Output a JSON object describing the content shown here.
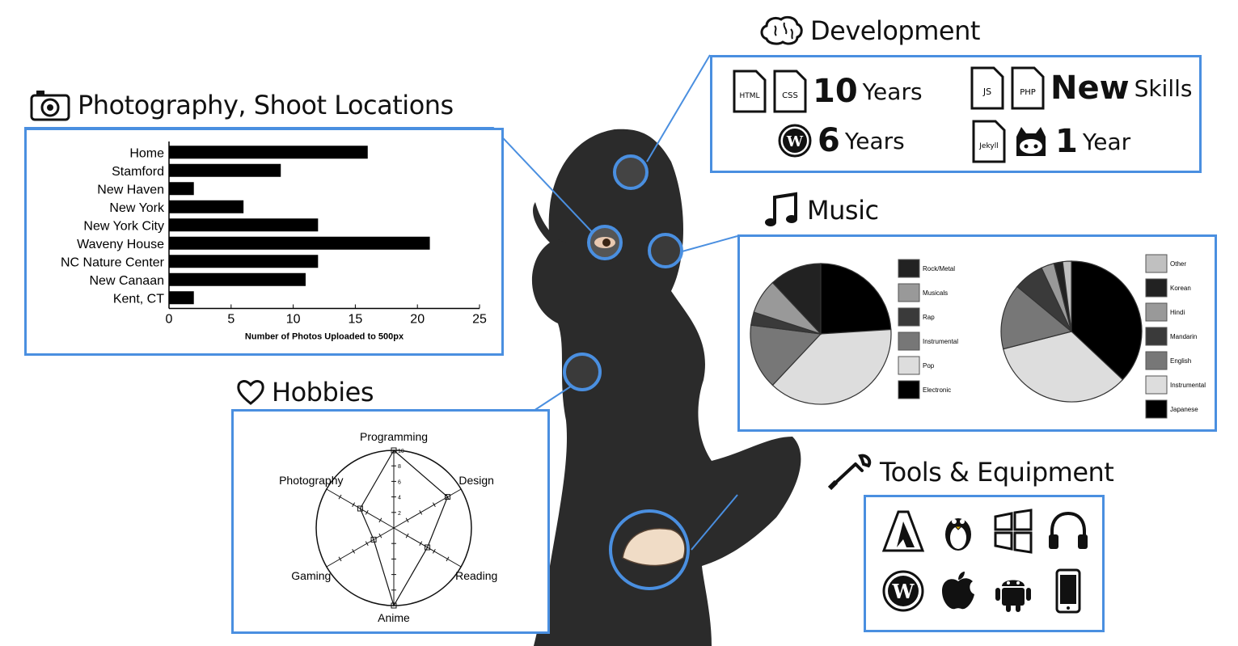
{
  "sections": {
    "photography": "Photography, Shoot Locations",
    "development": "Development",
    "music": "Music",
    "hobbies": "Hobbies",
    "tools": "Tools & Equipment"
  },
  "development": {
    "row1": {
      "icons": [
        "HTML",
        "CSS"
      ],
      "num": "10",
      "unit": "Years"
    },
    "row2": {
      "icons": [
        "wordpress-icon"
      ],
      "num": "6",
      "unit": "Years"
    },
    "row3": {
      "icons": [
        "JS",
        "PHP"
      ],
      "num": "New",
      "unit": "Skills"
    },
    "row4": {
      "icons": [
        "Jekyll",
        "github-icon"
      ],
      "num": "1",
      "unit": "Year"
    }
  },
  "tools": {
    "icons": [
      "adobe-icon",
      "linux-icon",
      "windows-icon",
      "headphones-icon",
      "wordpress-icon",
      "apple-icon",
      "android-icon",
      "phone-icon"
    ]
  },
  "chart_data": [
    {
      "type": "bar",
      "orientation": "horizontal",
      "categories": [
        "Home",
        "Stamford",
        "New Haven",
        "New York",
        "New York City",
        "Waveny House",
        "NC Nature Center",
        "New Canaan",
        "Kent, CT"
      ],
      "values": [
        16,
        9,
        2,
        6,
        12,
        21,
        12,
        11,
        2
      ],
      "xlabel": "Number of Photos Uploaded to 500px",
      "xlim": [
        0,
        25
      ],
      "xticks": [
        0,
        5,
        10,
        15,
        20,
        25
      ],
      "color": "#000000"
    },
    {
      "type": "pie",
      "labels": [
        "Rock/Metal",
        "Musicals",
        "Rap",
        "Instrumental",
        "Pop",
        "Electronic"
      ],
      "values": [
        12,
        8,
        3,
        15,
        38,
        24
      ],
      "colors": [
        "#222222",
        "#999999",
        "#3a3a3a",
        "#777777",
        "#dddddd",
        "#000000"
      ]
    },
    {
      "type": "pie",
      "labels": [
        "Other",
        "Korean",
        "Hindi",
        "Mandarin",
        "English",
        "Instrumental",
        "Japanese"
      ],
      "values": [
        2,
        2,
        3,
        7,
        15,
        34,
        37
      ],
      "colors": [
        "#c0c0c0",
        "#222222",
        "#999999",
        "#3a3a3a",
        "#777777",
        "#dddddd",
        "#000000"
      ]
    },
    {
      "type": "radar",
      "axes": [
        "Programming",
        "Design",
        "Reading",
        "Anime",
        "Gaming",
        "Photography"
      ],
      "values": [
        10,
        8,
        5,
        10,
        3,
        5
      ],
      "rlim": [
        0,
        10
      ],
      "rticks": [
        2,
        4,
        6,
        8,
        10
      ]
    }
  ]
}
